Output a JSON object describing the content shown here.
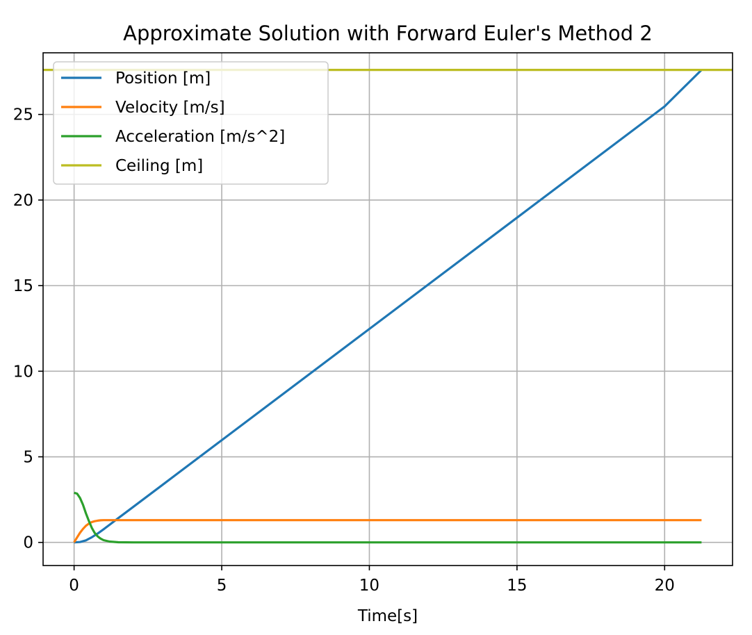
{
  "chart_data": {
    "type": "line",
    "title": "Approximate Solution with Forward Euler's Method 2",
    "xlabel": "Time[s]",
    "ylabel": "",
    "xlim": [
      -1.05,
      22.3
    ],
    "ylim": [
      -1.35,
      28.6
    ],
    "grid": true,
    "legend_position": "top-left",
    "x_ticks": [
      0,
      5,
      10,
      15,
      20
    ],
    "y_ticks": [
      0,
      5,
      10,
      15,
      20,
      25
    ],
    "series": [
      {
        "name": "Position [m]",
        "color": "#1f77b4",
        "x": [
          0,
          0.2,
          0.4,
          0.6,
          0.8,
          1.0,
          1.2,
          1.5,
          2.0,
          3.0,
          5.0,
          10.0,
          15.0,
          20.0,
          21.25
        ],
        "y": [
          0,
          0.02,
          0.12,
          0.3,
          0.52,
          0.77,
          1.03,
          1.42,
          2.07,
          3.37,
          5.97,
          12.47,
          18.97,
          25.47,
          27.6
        ]
      },
      {
        "name": "Velocity [m/s]",
        "color": "#ff7f0e",
        "x": [
          0,
          0.1,
          0.2,
          0.3,
          0.4,
          0.5,
          0.6,
          0.7,
          0.8,
          0.9,
          1.0,
          1.2,
          1.5,
          2.0,
          5.0,
          10.0,
          15.0,
          20.0,
          21.25
        ],
        "y": [
          0,
          0.29,
          0.56,
          0.79,
          0.97,
          1.1,
          1.19,
          1.24,
          1.27,
          1.29,
          1.3,
          1.3,
          1.3,
          1.3,
          1.3,
          1.3,
          1.3,
          1.3,
          1.3
        ]
      },
      {
        "name": "Acceleration [m/s^2]",
        "color": "#2ca02c",
        "x": [
          0,
          0.1,
          0.2,
          0.3,
          0.4,
          0.5,
          0.6,
          0.7,
          0.8,
          0.9,
          1.0,
          1.2,
          1.5,
          2.0,
          5.0,
          10.0,
          15.0,
          20.0,
          21.25
        ],
        "y": [
          2.9,
          2.85,
          2.6,
          2.2,
          1.7,
          1.25,
          0.85,
          0.55,
          0.35,
          0.22,
          0.13,
          0.05,
          0.01,
          0,
          0,
          0,
          0,
          0,
          0
        ]
      },
      {
        "name": "Ceiling [m]",
        "color": "#bcbd22",
        "x": [
          -1.05,
          22.3
        ],
        "y": [
          27.6,
          27.6
        ]
      }
    ]
  }
}
